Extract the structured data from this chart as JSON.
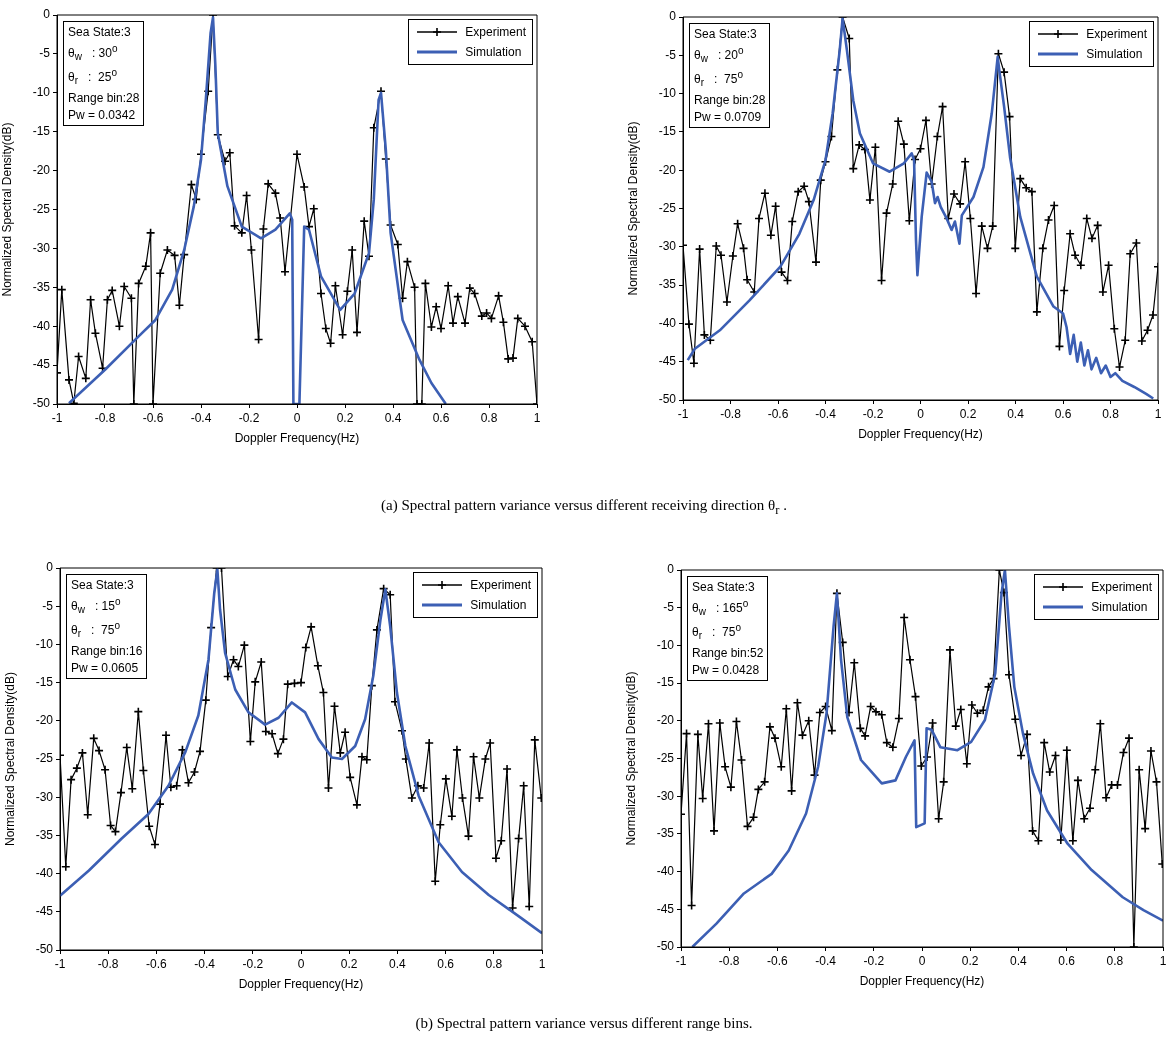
{
  "chart_data": [
    {
      "type": "line",
      "xlabel": "Doppler Frequency(Hz)",
      "ylabel": "Normalized Spectral Density(dB)",
      "xlim": [
        -1,
        1
      ],
      "xticks": [
        -1,
        -0.8,
        -0.6,
        -0.4,
        -0.2,
        0,
        0.2,
        0.4,
        0.6,
        0.8,
        1
      ],
      "ylim": [
        -50,
        0
      ],
      "yticks": [
        -50,
        -45,
        -40,
        -35,
        -30,
        -25,
        -20,
        -15,
        -10,
        -5,
        0
      ],
      "grid": false,
      "legend": "top right",
      "annotations": [
        "Sea State:3",
        "θ$_{w}$   : 30$^{o}$",
        "θ$_{r}$   :  25$^{o}$",
        "Range bin:28",
        "Pw = 0.0342"
      ],
      "series": [
        {
          "name": "Experiment",
          "color": "#000000",
          "marker": "cross",
          "x": [
            -1,
            -0.98,
            -0.95,
            -0.93,
            -0.91,
            -0.88,
            -0.86,
            -0.84,
            -0.81,
            -0.79,
            -0.77,
            -0.74,
            -0.72,
            -0.69,
            -0.68,
            -0.66,
            -0.63,
            -0.61,
            -0.6,
            -0.57,
            -0.54,
            -0.51,
            -0.49,
            -0.47,
            -0.44,
            -0.42,
            -0.4,
            -0.37,
            -0.35,
            -0.33,
            -0.3,
            -0.28,
            -0.26,
            -0.23,
            -0.21,
            -0.19,
            -0.16,
            -0.14,
            -0.12,
            -0.09,
            -0.07,
            -0.05,
            0,
            0.03,
            0.05,
            0.07,
            0.1,
            0.12,
            0.14,
            0.16,
            0.19,
            0.21,
            0.23,
            0.25,
            0.28,
            0.3,
            0.32,
            0.35,
            0.37,
            0.39,
            0.42,
            0.44,
            0.46,
            0.49,
            0.5,
            0.52,
            0.535,
            0.56,
            0.58,
            0.6,
            0.63,
            0.65,
            0.67,
            0.7,
            0.72,
            0.74,
            0.77,
            0.79,
            0.81,
            0.84,
            0.86,
            0.88,
            0.9,
            0.92,
            0.95,
            0.98,
            1
          ],
          "values": [
            -46,
            -35.3,
            -46.9,
            -49.9,
            -43.9,
            -46.7,
            -36.6,
            -40.9,
            -45.4,
            -36.6,
            -35.4,
            -40,
            -34.9,
            -36.4,
            -50,
            -34.5,
            -32.3,
            -28,
            -50,
            -33.2,
            -30.2,
            -30.9,
            -37.3,
            -30.8,
            -21.8,
            -23.7,
            -17.9,
            -9.8,
            0,
            -15.4,
            -18.8,
            -17.7,
            -27.1,
            -28,
            -23.2,
            -30.2,
            -41.7,
            -27.5,
            -21.7,
            -22.9,
            -26.1,
            -33,
            -17.9,
            -22.1,
            -27.2,
            -24.9,
            -35.8,
            -40.3,
            -42.2,
            -34.8,
            -41.1,
            -35.5,
            -30.2,
            -40.8,
            -26.5,
            -31,
            -14.5,
            -9.8,
            -18.5,
            -27,
            -29.5,
            -36.4,
            -31.7,
            -35,
            -50,
            -50,
            -34.5,
            -40.1,
            -37.5,
            -40.3,
            -34.8,
            -39.6,
            -36.2,
            -39.6,
            -35.1,
            -35.8,
            -38.7,
            -38.3,
            -39,
            -36.1,
            -39.5,
            -44.2,
            -44.1,
            -39,
            -40,
            -42,
            -50
          ]
        },
        {
          "name": "Simulation",
          "color": "#3c5fb4",
          "marker": "none",
          "x": [
            -0.95,
            -0.8,
            -0.66,
            -0.59,
            -0.52,
            -0.47,
            -0.43,
            -0.4,
            -0.38,
            -0.36,
            -0.35,
            -0.34,
            -0.33,
            -0.29,
            -0.23,
            -0.15,
            -0.09,
            -0.03,
            -0.02,
            -0.015,
            0.01,
            0.03,
            0.05,
            0.1,
            0.18,
            0.24,
            0.3,
            0.32,
            0.34,
            0.35,
            0.37,
            0.39,
            0.44,
            0.51,
            0.56,
            0.62
          ],
          "values": [
            -49.9,
            -45.6,
            -41.3,
            -39.2,
            -35.3,
            -30.2,
            -24.6,
            -18.6,
            -10.9,
            -2.3,
            -0.3,
            -6.6,
            -15.2,
            -22,
            -27.2,
            -28.7,
            -27.6,
            -25.5,
            -26.3,
            -50,
            -50,
            -27.2,
            -27.6,
            -33.6,
            -37.9,
            -35.8,
            -30.6,
            -23.7,
            -10.9,
            -10,
            -17.3,
            -28,
            -39.2,
            -44.3,
            -47.3,
            -50
          ]
        }
      ]
    },
    {
      "type": "line",
      "xlabel": "Doppler Frequency(Hz)",
      "ylabel": "Normalized Spectral Density(dB)",
      "xlim": [
        -1,
        1
      ],
      "xticks": [
        -1,
        -0.8,
        -0.6,
        -0.4,
        -0.2,
        0,
        0.2,
        0.4,
        0.6,
        0.8,
        1
      ],
      "ylim": [
        -50,
        0
      ],
      "yticks": [
        -50,
        -45,
        -40,
        -35,
        -30,
        -25,
        -20,
        -15,
        -10,
        -5,
        0
      ],
      "grid": false,
      "legend": "top right",
      "annotations": [
        "Sea State:3",
        "θ$_{w}$   : 20$^{o}$",
        "θ$_{r}$   :  75$^{o}$",
        "Range bin:28",
        "Pw = 0.0709"
      ],
      "series": [
        {
          "name": "Experiment",
          "color": "#000000",
          "marker": "cross",
          "x": [
            -1,
            -0.975,
            -0.954,
            -0.93,
            -0.91,
            -0.885,
            -0.86,
            -0.84,
            -0.815,
            -0.79,
            -0.77,
            -0.745,
            -0.73,
            -0.7,
            -0.68,
            -0.655,
            -0.63,
            -0.61,
            -0.585,
            -0.56,
            -0.54,
            -0.515,
            -0.49,
            -0.47,
            -0.44,
            -0.42,
            -0.4,
            -0.375,
            -0.35,
            -0.328,
            -0.3,
            -0.283,
            -0.258,
            -0.234,
            -0.213,
            -0.19,
            -0.164,
            -0.143,
            -0.117,
            -0.094,
            -0.07,
            -0.047,
            -0.023,
            0,
            0.023,
            0.047,
            0.071,
            0.093,
            0.117,
            0.141,
            0.167,
            0.188,
            0.21,
            0.234,
            0.258,
            0.282,
            0.304,
            0.328,
            0.352,
            0.375,
            0.399,
            0.42,
            0.445,
            0.469,
            0.49,
            0.515,
            0.539,
            0.563,
            0.585,
            0.605,
            0.63,
            0.651,
            0.675,
            0.7,
            0.722,
            0.746,
            0.768,
            0.792,
            0.816,
            0.838,
            0.862,
            0.883,
            0.909,
            0.932,
            0.956,
            0.979,
            1
          ],
          "values": [
            -29.8,
            -40.1,
            -45.2,
            -30.3,
            -41.5,
            -42.2,
            -29.9,
            -31.1,
            -37.2,
            -31.2,
            -27,
            -30.2,
            -34.3,
            -35.9,
            -26.3,
            -23,
            -28.5,
            -24.7,
            -33.3,
            -34.4,
            -26.7,
            -22.8,
            -22.1,
            -24.1,
            -32,
            -21.3,
            -18.9,
            -15.6,
            -6.9,
            0,
            -2.8,
            -19.8,
            -16.7,
            -17.3,
            -23.9,
            -17,
            -34.4,
            -25.6,
            -21.8,
            -13.6,
            -16.6,
            -26.6,
            -18.6,
            -17.2,
            -13.5,
            -21.8,
            -15.6,
            -11.7,
            -26.3,
            -23.1,
            -24.4,
            -18.9,
            -26.3,
            -36.1,
            -27.3,
            -30.2,
            -27.3,
            -4.8,
            -7.2,
            -13,
            -30.2,
            -21.1,
            -22.3,
            -22.8,
            -38.5,
            -30.2,
            -26.5,
            -24.6,
            -43,
            -35.7,
            -28.3,
            -31.1,
            -32.4,
            -26.3,
            -28.9,
            -27.2,
            -35.9,
            -32.4,
            -40.7,
            -45.7,
            -42.2,
            -30.9,
            -29.5,
            -42.3,
            -40.9,
            -38.9,
            -32.6
          ]
        },
        {
          "name": "Simulation",
          "color": "#3c5fb4",
          "marker": "none",
          "x": [
            -0.98,
            -0.95,
            -0.845,
            -0.72,
            -0.59,
            -0.51,
            -0.45,
            -0.4,
            -0.37,
            -0.34,
            -0.328,
            -0.31,
            -0.283,
            -0.255,
            -0.2,
            -0.13,
            -0.07,
            -0.037,
            -0.027,
            -0.019,
            -0.013,
            0.005,
            0.026,
            0.047,
            0.061,
            0.072,
            0.085,
            0.11,
            0.131,
            0.145,
            0.164,
            0.174,
            0.223,
            0.265,
            0.3,
            0.325,
            0.332,
            0.352,
            0.377,
            0.42,
            0.49,
            0.56,
            0.6,
            0.615,
            0.63,
            0.645,
            0.66,
            0.675,
            0.69,
            0.705,
            0.72,
            0.74,
            0.76,
            0.78,
            0.8,
            0.82,
            0.85,
            0.9,
            0.95,
            0.98
          ],
          "values": [
            -44.8,
            -43.3,
            -40.9,
            -37,
            -32.6,
            -28.3,
            -23.9,
            -18.7,
            -12.6,
            -4.3,
            -0.2,
            -4.3,
            -10.9,
            -15.2,
            -19.1,
            -20.2,
            -19.1,
            -17.8,
            -18.7,
            -29.1,
            -33.7,
            -26.1,
            -20.3,
            -21.5,
            -24.3,
            -23.5,
            -24.8,
            -26.3,
            -27.8,
            -26.7,
            -29.6,
            -25.9,
            -23.5,
            -19.6,
            -12.6,
            -5.2,
            -7,
            -11.7,
            -18.3,
            -26.1,
            -33.9,
            -37.8,
            -38.7,
            -40.5,
            -44,
            -41.5,
            -45,
            -42.5,
            -45.5,
            -43.5,
            -46,
            -44.5,
            -46.5,
            -45.5,
            -47,
            -46.5,
            -47.5,
            -48.3,
            -49.2,
            -49.8
          ]
        }
      ]
    },
    {
      "type": "other",
      "annotations": [
        "(a) Spectral pattern variance versus different receiving direction  θ$_{r}$ ."
      ]
    },
    {
      "type": "line",
      "xlabel": "Doppler Frequency(Hz)",
      "ylabel": "Normalized Spectral Density(dB)",
      "xlim": [
        -1,
        1
      ],
      "xticks": [
        -1,
        -0.8,
        -0.6,
        -0.4,
        -0.2,
        0,
        0.2,
        0.4,
        0.6,
        0.8,
        1
      ],
      "ylim": [
        -50,
        0
      ],
      "yticks": [
        -50,
        -45,
        -40,
        -35,
        -30,
        -25,
        -20,
        -15,
        -10,
        -5,
        0
      ],
      "grid": false,
      "legend": "top right",
      "annotations": [
        "Sea State:3",
        "θ$_{w}$   : 15$^{o}$",
        "θ$_{r}$   :  75$^{o}$",
        "Range bin:16",
        "Pw = 0.0605"
      ],
      "series": [
        {
          "name": "Experiment",
          "color": "#000000",
          "marker": "cross",
          "x": [
            -1,
            -0.976,
            -0.954,
            -0.93,
            -0.907,
            -0.885,
            -0.86,
            -0.838,
            -0.813,
            -0.79,
            -0.77,
            -0.747,
            -0.723,
            -0.7,
            -0.675,
            -0.654,
            -0.63,
            -0.606,
            -0.585,
            -0.56,
            -0.54,
            -0.516,
            -0.492,
            -0.467,
            -0.442,
            -0.419,
            -0.395,
            -0.373,
            -0.35,
            -0.33,
            -0.304,
            -0.28,
            -0.26,
            -0.235,
            -0.21,
            -0.19,
            -0.165,
            -0.146,
            -0.12,
            -0.096,
            -0.073,
            -0.055,
            -0.027,
            0,
            0.02,
            0.042,
            0.07,
            0.093,
            0.114,
            0.139,
            0.163,
            0.183,
            0.204,
            0.232,
            0.253,
            0.273,
            0.294,
            0.315,
            0.343,
            0.37,
            0.39,
            0.419,
            0.435,
            0.46,
            0.485,
            0.509,
            0.532,
            0.557,
            0.578,
            0.601,
            0.626,
            0.647,
            0.67,
            0.695,
            0.716,
            0.74,
            0.765,
            0.785,
            0.809,
            0.831,
            0.855,
            0.878,
            0.903,
            0.924,
            0.947,
            0.97,
            0.997
          ],
          "values": [
            -24.5,
            -39.1,
            -27.7,
            -26.2,
            -24.2,
            -32.3,
            -22.3,
            -23.9,
            -26.4,
            -33.7,
            -34.5,
            -29.4,
            -23.5,
            -28.9,
            -18.8,
            -26.5,
            -33.8,
            -36.2,
            -30.9,
            -21.9,
            -28.7,
            -28.5,
            -23.8,
            -28.1,
            -26.7,
            -24,
            -17.3,
            -7.8,
            0,
            0,
            -14.2,
            -12,
            -12.9,
            -10.1,
            -22.7,
            -14.9,
            -12.3,
            -21.4,
            -21.7,
            -24.3,
            -22.4,
            -15.2,
            -15.1,
            -15,
            -10.4,
            -7.7,
            -12.8,
            -16.3,
            -28.8,
            -18.1,
            -24.2,
            -21.5,
            -27.4,
            -31,
            -24.7,
            -25.1,
            -15.4,
            -8.1,
            -2.7,
            -3.5,
            -17.5,
            -21.3,
            -25,
            -30.1,
            -28.5,
            -28.8,
            -22.9,
            -41,
            -33.6,
            -27.6,
            -32.5,
            -23.8,
            -30.1,
            -35.1,
            -24.7,
            -30.1,
            -25,
            -22.9,
            -38,
            -35.7,
            -26.3,
            -44.5,
            -35.4,
            -28.5,
            -44.3,
            -22.5,
            -30.1
          ]
        },
        {
          "name": "Simulation",
          "color": "#3c5fb4",
          "marker": "none",
          "x": [
            -1,
            -0.88,
            -0.744,
            -0.633,
            -0.55,
            -0.48,
            -0.426,
            -0.384,
            -0.36,
            -0.347,
            -0.336,
            -0.315,
            -0.273,
            -0.218,
            -0.149,
            -0.093,
            -0.038,
            0.017,
            0.073,
            0.128,
            0.17,
            0.225,
            0.266,
            0.3,
            0.33,
            0.35,
            0.37,
            0.398,
            0.433,
            0.488,
            0.571,
            0.668,
            0.779,
            0.917,
            1
          ],
          "values": [
            -42.9,
            -39.6,
            -35.4,
            -32.2,
            -28.5,
            -24.1,
            -19.3,
            -12,
            -3.3,
            -0.2,
            -5.4,
            -11.1,
            -15.9,
            -18.9,
            -20.5,
            -19.6,
            -17.6,
            -18.9,
            -22.4,
            -24.8,
            -25,
            -23.3,
            -19.8,
            -14.1,
            -6.7,
            -2.8,
            -7.6,
            -16.3,
            -23.3,
            -29.8,
            -35.9,
            -39.8,
            -42.8,
            -45.9,
            -47.8
          ]
        }
      ]
    },
    {
      "type": "line",
      "xlabel": "Doppler Frequency(Hz)",
      "ylabel": "Normalized Spectral Density(dB)",
      "xlim": [
        -1,
        1
      ],
      "xticks": [
        -1,
        -0.8,
        -0.6,
        -0.4,
        -0.2,
        0,
        0.2,
        0.4,
        0.6,
        0.8,
        1
      ],
      "ylim": [
        -50,
        0
      ],
      "yticks": [
        -50,
        -45,
        -40,
        -35,
        -30,
        -25,
        -20,
        -15,
        -10,
        -5,
        0
      ],
      "grid": false,
      "legend": "top right",
      "annotations": [
        "Sea State:3",
        "θ$_{w}$   : 165$^{o}$",
        "θ$_{r}$   :  75$^{o}$",
        "Range bin:52",
        "Pw = 0.0428"
      ],
      "series": [
        {
          "name": "Experiment",
          "color": "#000000",
          "marker": "cross",
          "x": [
            -1,
            -0.977,
            -0.956,
            -0.93,
            -0.91,
            -0.886,
            -0.863,
            -0.839,
            -0.817,
            -0.793,
            -0.77,
            -0.749,
            -0.724,
            -0.699,
            -0.679,
            -0.653,
            -0.631,
            -0.61,
            -0.584,
            -0.563,
            -0.541,
            -0.517,
            -0.496,
            -0.47,
            -0.446,
            -0.424,
            -0.4,
            -0.374,
            -0.353,
            -0.329,
            -0.303,
            -0.281,
            -0.256,
            -0.236,
            -0.213,
            -0.191,
            -0.167,
            -0.146,
            -0.121,
            -0.096,
            -0.074,
            -0.05,
            -0.027,
            -0.003,
            0.021,
            0.044,
            0.069,
            0.09,
            0.116,
            0.14,
            0.161,
            0.186,
            0.207,
            0.23,
            0.254,
            0.276,
            0.297,
            0.321,
            0.34,
            0.361,
            0.387,
            0.411,
            0.436,
            0.459,
            0.483,
            0.507,
            0.53,
            0.554,
            0.576,
            0.601,
            0.626,
            0.647,
            0.673,
            0.697,
            0.719,
            0.74,
            0.764,
            0.787,
            0.811,
            0.836,
            0.859,
            0.879,
            0.901,
            0.926,
            0.95,
            0.973,
            0.997
          ],
          "values": [
            -32.4,
            -21.7,
            -44.5,
            -21.8,
            -30.3,
            -20.4,
            -34.6,
            -20.3,
            -26.1,
            -28.8,
            -20.1,
            -25.2,
            -34,
            -32.8,
            -29.1,
            -28.1,
            -20.8,
            -22.3,
            -26.1,
            -18.4,
            -29.3,
            -17.6,
            -21.9,
            -20,
            -27.2,
            -18.9,
            -18.1,
            -21.3,
            -3.1,
            -9.6,
            -18.9,
            -12.3,
            -21,
            -22,
            -18.1,
            -18.8,
            -19.2,
            -22.9,
            -23.5,
            -19.7,
            -6.3,
            -11.9,
            -16.8,
            -26,
            -24.8,
            -20.3,
            -33,
            -28.1,
            -10.6,
            -20.7,
            -18.5,
            -25.7,
            -17.9,
            -19,
            -18.6,
            -15.5,
            -14.4,
            0,
            -3,
            -13.9,
            -19.8,
            -24.6,
            -21.8,
            -34.6,
            -35.9,
            -22.9,
            -26.8,
            -24.6,
            -35.8,
            -23.9,
            -35.9,
            -27.9,
            -33,
            -31.6,
            -26.5,
            -20.4,
            -30.2,
            -28.5,
            -28.5,
            -24.2,
            -22.3,
            -50,
            -26.5,
            -34.3,
            -24,
            -28.1,
            -39
          ]
        },
        {
          "name": "Simulation",
          "color": "#3c5fb4",
          "marker": "none",
          "x": [
            -0.953,
            -0.853,
            -0.739,
            -0.624,
            -0.553,
            -0.481,
            -0.431,
            -0.396,
            -0.367,
            -0.353,
            -0.336,
            -0.31,
            -0.253,
            -0.167,
            -0.11,
            -0.067,
            -0.031,
            -0.024,
            0.011,
            0.019,
            0.04,
            0.076,
            0.147,
            0.204,
            0.261,
            0.304,
            0.33,
            0.344,
            0.361,
            0.383,
            0.419,
            0.461,
            0.519,
            0.604,
            0.704,
            0.833,
            0.919,
            1
          ],
          "values": [
            -50,
            -46.9,
            -42.9,
            -40.3,
            -37.2,
            -32.3,
            -26.1,
            -19,
            -7.5,
            -3.1,
            -11.9,
            -19.5,
            -25.2,
            -28.3,
            -27.9,
            -24.8,
            -22.6,
            -34.1,
            -33.6,
            -21,
            -21.2,
            -23.5,
            -23.9,
            -22.8,
            -19.9,
            -13.7,
            -3.1,
            0,
            -7.5,
            -15.5,
            -21.7,
            -27,
            -31.9,
            -36.3,
            -39.8,
            -43.4,
            -45.1,
            -46.5
          ]
        }
      ]
    },
    {
      "type": "other",
      "annotations": [
        "(b) Spectral pattern variance versus different range bins."
      ]
    }
  ]
}
